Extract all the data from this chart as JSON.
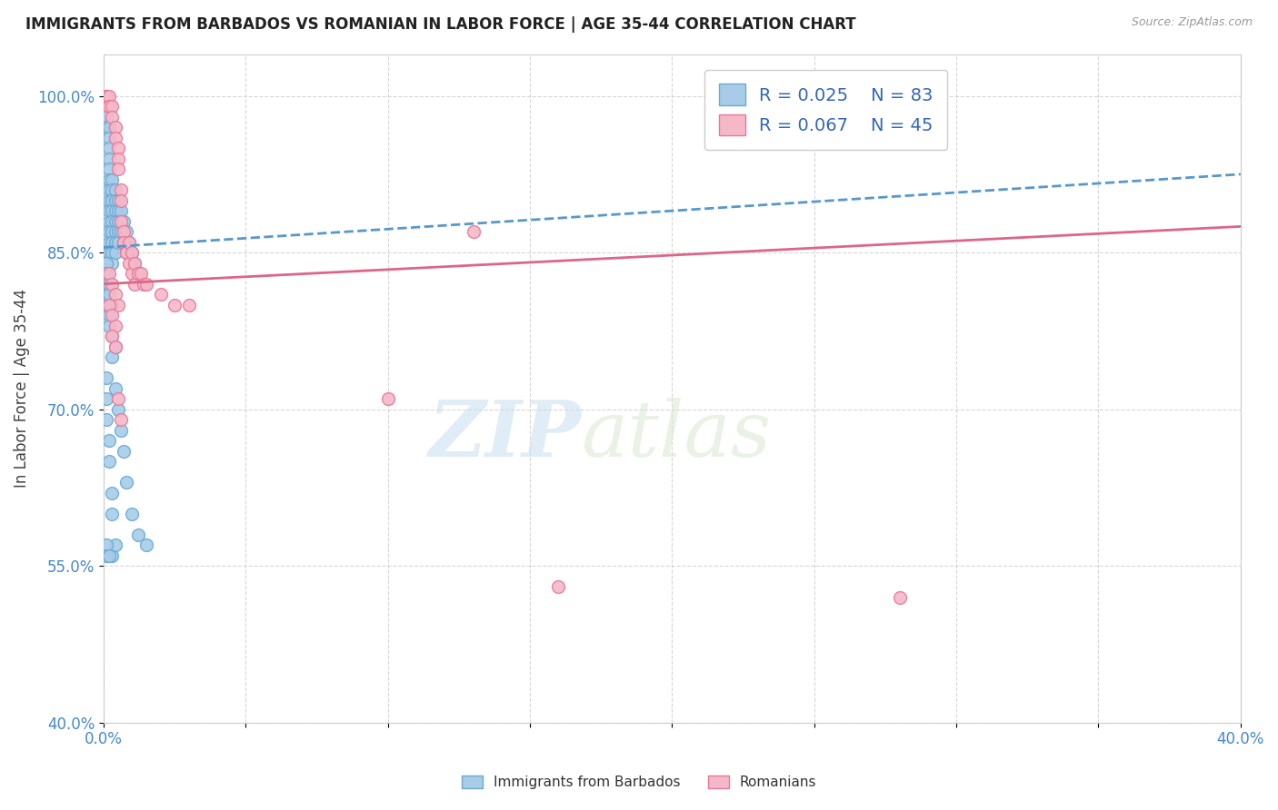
{
  "title": "IMMIGRANTS FROM BARBADOS VS ROMANIAN IN LABOR FORCE | AGE 35-44 CORRELATION CHART",
  "source": "Source: ZipAtlas.com",
  "ylabel": "In Labor Force | Age 35-44",
  "xlim": [
    0.0,
    0.4
  ],
  "ylim": [
    0.4,
    1.04
  ],
  "xticks": [
    0.0,
    0.05,
    0.1,
    0.15,
    0.2,
    0.25,
    0.3,
    0.35,
    0.4
  ],
  "xticklabels": [
    "0.0%",
    "",
    "",
    "",
    "",
    "",
    "",
    "",
    "40.0%"
  ],
  "yticks": [
    0.4,
    0.55,
    0.7,
    0.85,
    1.0
  ],
  "yticklabels": [
    "40.0%",
    "55.0%",
    "70.0%",
    "85.0%",
    "100.0%"
  ],
  "barbados_R": 0.025,
  "barbados_N": 83,
  "romanian_R": 0.067,
  "romanian_N": 45,
  "barbados_color": "#a8cce8",
  "romanian_color": "#f5b8c8",
  "barbados_edge": "#6aaad4",
  "romanian_edge": "#e87898",
  "trend_blue_color": "#5599cc",
  "trend_pink_color": "#dd6688",
  "watermark_zip": "ZIP",
  "watermark_atlas": "atlas",
  "legend_label_1": "Immigrants from Barbados",
  "legend_label_2": "Romanians",
  "barbados_x": [
    0.001,
    0.001,
    0.001,
    0.001,
    0.002,
    0.002,
    0.002,
    0.002,
    0.002,
    0.002,
    0.002,
    0.002,
    0.002,
    0.002,
    0.002,
    0.002,
    0.002,
    0.002,
    0.003,
    0.003,
    0.003,
    0.003,
    0.003,
    0.003,
    0.003,
    0.003,
    0.003,
    0.004,
    0.004,
    0.004,
    0.004,
    0.004,
    0.004,
    0.004,
    0.005,
    0.005,
    0.005,
    0.005,
    0.005,
    0.006,
    0.006,
    0.006,
    0.007,
    0.007,
    0.008,
    0.008,
    0.009,
    0.01,
    0.011,
    0.012,
    0.001,
    0.001,
    0.001,
    0.001,
    0.001,
    0.002,
    0.002,
    0.002,
    0.002,
    0.003,
    0.003,
    0.003,
    0.004,
    0.004,
    0.005,
    0.006,
    0.007,
    0.008,
    0.01,
    0.012,
    0.015,
    0.003,
    0.001,
    0.001,
    0.001,
    0.002,
    0.002,
    0.003,
    0.003,
    0.004,
    0.001,
    0.001,
    0.002
  ],
  "barbados_y": [
    1.0,
    1.0,
    0.98,
    0.97,
    0.97,
    0.96,
    0.95,
    0.94,
    0.93,
    0.92,
    0.91,
    0.9,
    0.89,
    0.88,
    0.87,
    0.86,
    0.85,
    0.85,
    0.92,
    0.91,
    0.9,
    0.89,
    0.88,
    0.87,
    0.86,
    0.85,
    0.84,
    0.91,
    0.9,
    0.89,
    0.88,
    0.87,
    0.86,
    0.85,
    0.9,
    0.89,
    0.88,
    0.87,
    0.86,
    0.89,
    0.88,
    0.87,
    0.88,
    0.86,
    0.87,
    0.85,
    0.86,
    0.85,
    0.84,
    0.83,
    0.84,
    0.83,
    0.82,
    0.81,
    0.8,
    0.82,
    0.81,
    0.79,
    0.78,
    0.8,
    0.77,
    0.75,
    0.76,
    0.72,
    0.7,
    0.68,
    0.66,
    0.63,
    0.6,
    0.58,
    0.57,
    0.56,
    0.73,
    0.71,
    0.69,
    0.67,
    0.65,
    0.62,
    0.6,
    0.57,
    0.57,
    0.56,
    0.56
  ],
  "romanian_x": [
    0.001,
    0.002,
    0.002,
    0.003,
    0.003,
    0.004,
    0.004,
    0.005,
    0.005,
    0.005,
    0.006,
    0.006,
    0.006,
    0.007,
    0.007,
    0.008,
    0.008,
    0.009,
    0.009,
    0.01,
    0.01,
    0.011,
    0.011,
    0.012,
    0.013,
    0.014,
    0.015,
    0.02,
    0.025,
    0.03,
    0.002,
    0.003,
    0.004,
    0.005,
    0.002,
    0.003,
    0.004,
    0.003,
    0.004,
    0.005,
    0.006,
    0.1,
    0.13,
    0.16,
    0.28
  ],
  "romanian_y": [
    1.0,
    1.0,
    0.99,
    0.99,
    0.98,
    0.97,
    0.96,
    0.95,
    0.94,
    0.93,
    0.91,
    0.9,
    0.88,
    0.87,
    0.86,
    0.85,
    0.85,
    0.86,
    0.84,
    0.85,
    0.83,
    0.84,
    0.82,
    0.83,
    0.83,
    0.82,
    0.82,
    0.81,
    0.8,
    0.8,
    0.83,
    0.82,
    0.81,
    0.8,
    0.8,
    0.79,
    0.78,
    0.77,
    0.76,
    0.71,
    0.69,
    0.71,
    0.87,
    0.53,
    0.52
  ]
}
